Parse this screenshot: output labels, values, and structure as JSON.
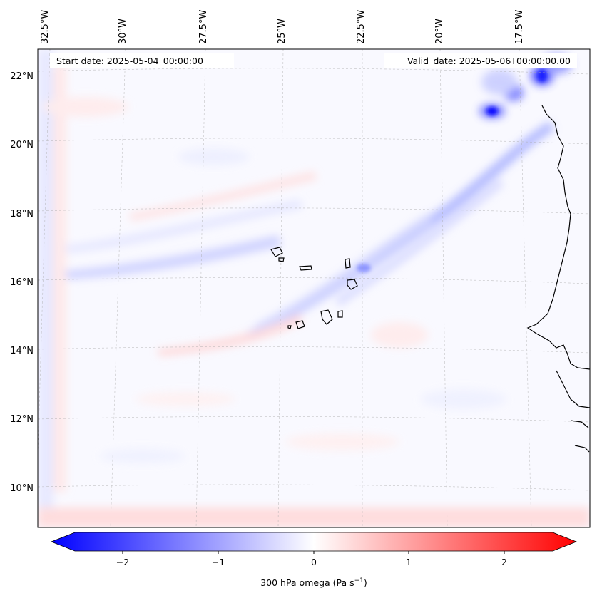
{
  "header": {
    "start_date": "Start date: 2025-05-04_00:00:00",
    "valid_date": "Valid_date: 2025-05-06T00:00:00.00"
  },
  "axes": {
    "lon_labels": [
      "32.5°W",
      "30°W",
      "27.5°W",
      "25°W",
      "22.5°W",
      "20°W",
      "17.5°W"
    ],
    "lat_labels": [
      "22°N",
      "20°N",
      "18°N",
      "16°N",
      "14°N",
      "12°N",
      "10°N"
    ]
  },
  "colorbar": {
    "ticks": [
      "−2",
      "−1",
      "0",
      "1",
      "2"
    ],
    "label_prefix": "300 hPa omega (Pa s",
    "label_exp": "−1",
    "label_suffix": ")",
    "range": [
      -2.6,
      2.6
    ],
    "neg_color": "#0000ff",
    "pos_color": "#ff0000"
  }
}
